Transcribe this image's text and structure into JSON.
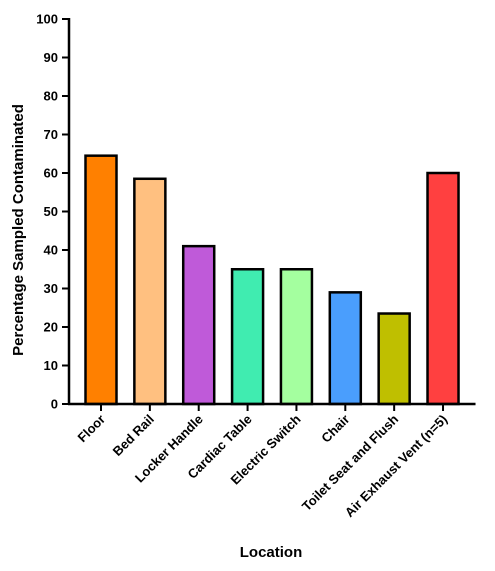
{
  "chart_data": {
    "type": "bar",
    "title": "",
    "xlabel": "Location",
    "ylabel": "Percentage Sampled Contaminated",
    "ylim": [
      0,
      100
    ],
    "yticks": [
      0,
      10,
      20,
      30,
      40,
      50,
      60,
      70,
      80,
      90,
      100
    ],
    "grid": false,
    "categories": [
      "Floor",
      "Bed Rail",
      "Locker Handle",
      "Cardiac Table",
      "Electric Switch",
      "Chair",
      "Toilet Seat and Flush",
      "Air Exhaust Vent (n=5)"
    ],
    "values": [
      64.5,
      58.5,
      41,
      35,
      35,
      29,
      23.5,
      60
    ],
    "colors": [
      "#ff8000",
      "#ffc080",
      "#bf5ad9",
      "#40ecb0",
      "#a4ff9f",
      "#4a9efd",
      "#bfbf00",
      "#ff4040"
    ]
  }
}
